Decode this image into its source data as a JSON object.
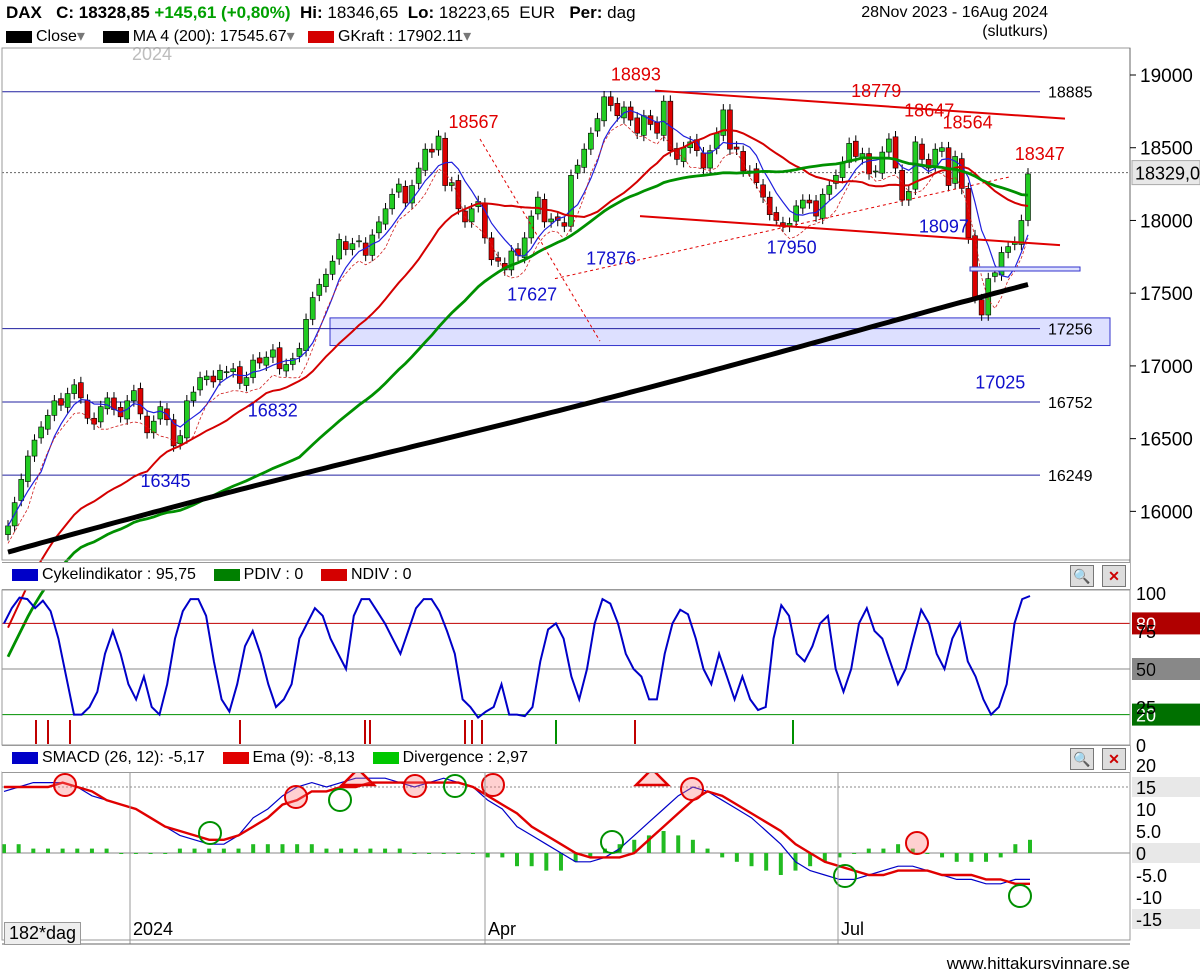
{
  "header": {
    "symbol": "DAX",
    "close_label": "C:",
    "close_value": "18328,85",
    "change": "+145,61 (+0,80%)",
    "hi_label": "Hi:",
    "hi_value": "18346,65",
    "lo_label": "Lo:",
    "lo_value": "18223,65",
    "currency": "EUR",
    "per_label": "Per:",
    "per_value": "dag",
    "date_range": "28Nov 2023 - 16Aug 2024",
    "price_type": "(slutkurs)",
    "legend_close": "Close",
    "legend_ma": "MA 4 (200): 17545.67",
    "legend_gkraft": "GKraft : 17902.11",
    "year_label": "2024"
  },
  "chart_data": [
    {
      "type": "candlestick",
      "ylim": [
        15650,
        19150
      ],
      "y_ticks": [
        16000,
        16500,
        17000,
        17500,
        18000,
        18500,
        19000
      ],
      "last_price_label": "18329,0",
      "horizontal_levels": [
        18885,
        17256,
        16752,
        16249
      ],
      "peak_labels": [
        {
          "text": "18893",
          "x": 0.562,
          "y": 18893
        },
        {
          "text": "18567",
          "x": 0.418,
          "y": 18567
        },
        {
          "text": "18779",
          "x": 0.775,
          "y": 18779
        },
        {
          "text": "18647",
          "x": 0.822,
          "y": 18647
        },
        {
          "text": "18564",
          "x": 0.856,
          "y": 18564
        },
        {
          "text": "18347",
          "x": 0.92,
          "y": 18347
        }
      ],
      "trough_labels": [
        {
          "text": "16345",
          "x": 0.145,
          "y": 16345
        },
        {
          "text": "16832",
          "x": 0.24,
          "y": 16832
        },
        {
          "text": "17627",
          "x": 0.47,
          "y": 17627
        },
        {
          "text": "17876",
          "x": 0.54,
          "y": 17876
        },
        {
          "text": "17950",
          "x": 0.7,
          "y": 17950
        },
        {
          "text": "18097",
          "x": 0.835,
          "y": 18097
        },
        {
          "text": "17025",
          "x": 0.885,
          "y": 17025
        }
      ],
      "x_labels": [
        "2024",
        "Apr",
        "Jul"
      ],
      "period": "182*dag",
      "close": [
        15900,
        16060,
        16220,
        16380,
        16490,
        16580,
        16660,
        16760,
        16730,
        16810,
        16870,
        16780,
        16640,
        16600,
        16720,
        16780,
        16700,
        16650,
        16760,
        16830,
        16670,
        16540,
        16620,
        16720,
        16630,
        16450,
        16520,
        16760,
        16820,
        16920,
        16930,
        16890,
        16970,
        16960,
        16980,
        16880,
        16920,
        17040,
        17020,
        17060,
        17110,
        16980,
        17010,
        17050,
        17120,
        17320,
        17470,
        17560,
        17630,
        17720,
        17870,
        17800,
        17840,
        17860,
        17760,
        17900,
        17990,
        18080,
        18180,
        18250,
        18120,
        18240,
        18360,
        18490,
        18470,
        18580,
        18240,
        18260,
        18080,
        17990,
        18080,
        18130,
        17880,
        17730,
        17720,
        17660,
        17790,
        17760,
        17880,
        18030,
        18160,
        17990,
        18010,
        18000,
        17960,
        18310,
        18380,
        18490,
        18600,
        18700,
        18850,
        18790,
        18720,
        18780,
        18690,
        18600,
        18720,
        18660,
        18600,
        18820,
        18480,
        18420,
        18500,
        18540,
        18480,
        18360,
        18480,
        18600,
        18760,
        18490,
        18490,
        18340,
        18340,
        18260,
        18160,
        18040,
        18000,
        17960,
        17980,
        18100,
        18140,
        18120,
        18030,
        18180,
        18240,
        18310,
        18400,
        18530,
        18440,
        18460,
        18320,
        18340,
        18470,
        18560,
        18360,
        18140,
        18200,
        18540,
        18420,
        18360,
        18490,
        18500,
        18240,
        18440,
        18220,
        17880,
        17470,
        17350,
        17600,
        17640,
        17780,
        17820,
        17850,
        18000,
        18320
      ]
    },
    {
      "type": "line",
      "title": "Cykelindikator",
      "legend": [
        "Cykelindikator : 95,75",
        "PDIV : 0",
        "NDIV : 0"
      ],
      "ylim": [
        0,
        100
      ],
      "y_ticks": [
        0,
        25,
        50,
        75,
        100
      ],
      "levels": [
        80,
        50,
        20
      ],
      "values": [
        80,
        90,
        97,
        96,
        90,
        95,
        88,
        70,
        45,
        20,
        20,
        25,
        35,
        60,
        75,
        60,
        40,
        30,
        45,
        25,
        20,
        40,
        70,
        88,
        96,
        96,
        85,
        55,
        30,
        22,
        40,
        65,
        75,
        60,
        40,
        25,
        30,
        40,
        70,
        80,
        90,
        85,
        70,
        60,
        50,
        85,
        96,
        96,
        88,
        80,
        70,
        60,
        75,
        90,
        96,
        96,
        88,
        75,
        60,
        30,
        25,
        18,
        22,
        25,
        40,
        20,
        20,
        19,
        25,
        55,
        76,
        80,
        70,
        45,
        30,
        50,
        80,
        96,
        93,
        80,
        60,
        50,
        45,
        30,
        30,
        60,
        80,
        89,
        86,
        70,
        50,
        40,
        60,
        45,
        30,
        45,
        30,
        23,
        25,
        70,
        92,
        85,
        60,
        55,
        65,
        80,
        85,
        50,
        35,
        50,
        80,
        90,
        75,
        70,
        55,
        40,
        50,
        70,
        89,
        80,
        60,
        50,
        70,
        80,
        55,
        45,
        30,
        20,
        25,
        40,
        80,
        96,
        98
      ]
    },
    {
      "type": "line+bar",
      "title": "SMACD",
      "legend": [
        "SMACD (26, 12): -5,17",
        "Ema (9): -8,13",
        "Divergence : 2,97"
      ],
      "ylim": [
        -17,
        21
      ],
      "y_ticks": [
        -15,
        -10,
        -5,
        0,
        5,
        10,
        15,
        20
      ],
      "tick_labels": [
        "-15",
        "-10",
        "-5.0",
        "0",
        "5.0",
        "10",
        "15",
        "20"
      ],
      "smacd": [
        14,
        15,
        16,
        16,
        16,
        15,
        13,
        12,
        11,
        10,
        8,
        6,
        4,
        3,
        2,
        2,
        4,
        8,
        10,
        13,
        15,
        16,
        15,
        16,
        17,
        17,
        17,
        16,
        15,
        16,
        17,
        16,
        15,
        12,
        10,
        6,
        4,
        2,
        0,
        -2,
        -2,
        -1,
        1,
        4,
        7,
        10,
        13,
        15,
        14,
        12,
        10,
        8,
        5,
        2,
        -2,
        -4,
        -5,
        -6,
        -6,
        -5,
        -4,
        -3,
        -3,
        -4,
        -5,
        -6,
        -6,
        -7,
        -7,
        -6,
        -6
      ],
      "ema": [
        15,
        15,
        15,
        15,
        16,
        15,
        14,
        12,
        11,
        10,
        8,
        6,
        5,
        4,
        3,
        3,
        4,
        6,
        8,
        11,
        12,
        14,
        14,
        15,
        15,
        16,
        16,
        16,
        16,
        16,
        16,
        16,
        15,
        13,
        11,
        9,
        6,
        4,
        2,
        0,
        -1,
        -1,
        -1,
        0,
        3,
        6,
        9,
        12,
        14,
        13,
        11,
        9,
        7,
        5,
        2,
        0,
        -2,
        -3,
        -4,
        -5,
        -5,
        -4,
        -4,
        -4,
        -5,
        -5,
        -5,
        -6,
        -6,
        -7,
        -7
      ],
      "divergence": [
        2,
        2,
        1,
        1,
        1,
        1,
        1,
        1,
        0,
        0,
        0,
        0,
        1,
        1,
        1,
        1,
        1,
        2,
        2,
        2,
        2,
        2,
        1,
        1,
        1,
        1,
        1,
        1,
        0,
        0,
        0,
        0,
        0,
        -1,
        -1,
        -3,
        -3,
        -4,
        -4,
        -2,
        -1,
        1,
        2,
        3,
        4,
        5,
        4,
        3,
        1,
        -1,
        -2,
        -3,
        -4,
        -5,
        -4,
        -3,
        -2,
        -1,
        0,
        1,
        1,
        2,
        1,
        0,
        -1,
        -2,
        -2,
        -2,
        -1,
        2,
        3
      ]
    }
  ],
  "footer": {
    "website": "www.hittakursvinnare.se"
  }
}
